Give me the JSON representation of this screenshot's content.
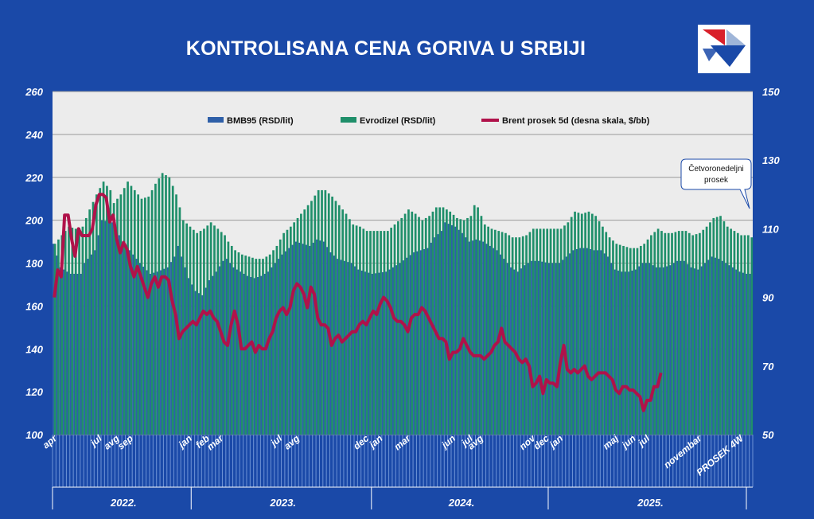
{
  "chart_data": {
    "type": "bar+line",
    "title": "KONTROLISANA CENA GORIVA U SRBIJI",
    "left_axis": {
      "min": 100,
      "max": 260,
      "ticks": [
        100,
        120,
        140,
        160,
        180,
        200,
        220,
        240,
        260
      ]
    },
    "right_axis": {
      "min": 50,
      "max": 150,
      "ticks": [
        50,
        70,
        90,
        110,
        130,
        150
      ]
    },
    "legend": [
      {
        "label": "BMB95 (RSD/lit)",
        "color": "#2e5fa8"
      },
      {
        "label": "Evrodizel (RSD/lit)",
        "color": "#1f8f6a"
      },
      {
        "label": "Brent prosek  5d (desna skala, $/bb)",
        "color": "#b0124a"
      }
    ],
    "annotation": "Četvoronedeljni prosek",
    "x_month_labels": [
      {
        "i": 0,
        "t": "apr"
      },
      {
        "i": 13,
        "t": "jul"
      },
      {
        "i": 18,
        "t": "avg"
      },
      {
        "i": 22,
        "t": "sep"
      },
      {
        "i": 39,
        "t": "jan"
      },
      {
        "i": 44,
        "t": "feb"
      },
      {
        "i": 48,
        "t": "mar"
      },
      {
        "i": 65,
        "t": "jul"
      },
      {
        "i": 70,
        "t": "avg"
      },
      {
        "i": 90,
        "t": "dec"
      },
      {
        "i": 94,
        "t": "jan"
      },
      {
        "i": 102,
        "t": "mar"
      },
      {
        "i": 115,
        "t": "jun"
      },
      {
        "i": 120,
        "t": "jul"
      },
      {
        "i": 123,
        "t": "avg"
      },
      {
        "i": 138,
        "t": "nov"
      },
      {
        "i": 142,
        "t": "dec"
      },
      {
        "i": 146,
        "t": "jan"
      },
      {
        "i": 162,
        "t": "maj"
      },
      {
        "i": 167,
        "t": "jun"
      },
      {
        "i": 171,
        "t": "jul"
      },
      {
        "i": 186,
        "t": "novembar"
      },
      {
        "i": 198,
        "t": "PROSEK 4W"
      }
    ],
    "years": [
      {
        "label": "2022.",
        "from": 0,
        "to": 40
      },
      {
        "label": "2023.",
        "from": 40,
        "to": 92
      },
      {
        "label": "2024.",
        "from": 92,
        "to": 143
      },
      {
        "label": "2025.",
        "from": 143,
        "to": 201
      }
    ],
    "n_periods": 202,
    "bmb95_knots": [
      [
        0,
        189
      ],
      [
        2,
        178
      ],
      [
        5,
        175
      ],
      [
        8,
        175
      ],
      [
        9,
        180
      ],
      [
        12,
        186
      ],
      [
        14,
        200
      ],
      [
        17,
        199
      ],
      [
        18,
        196
      ],
      [
        20,
        190
      ],
      [
        22,
        186
      ],
      [
        25,
        180
      ],
      [
        28,
        175
      ],
      [
        30,
        176
      ],
      [
        33,
        178
      ],
      [
        35,
        183
      ],
      [
        36,
        188
      ],
      [
        37,
        183
      ],
      [
        39,
        173
      ],
      [
        41,
        167
      ],
      [
        43,
        165
      ],
      [
        45,
        172
      ],
      [
        47,
        176
      ],
      [
        49,
        181
      ],
      [
        50,
        182
      ],
      [
        52,
        178
      ],
      [
        54,
        176
      ],
      [
        56,
        174
      ],
      [
        58,
        173
      ],
      [
        60,
        174
      ],
      [
        62,
        176
      ],
      [
        64,
        180
      ],
      [
        66,
        184
      ],
      [
        68,
        187
      ],
      [
        70,
        190
      ],
      [
        72,
        189
      ],
      [
        74,
        188
      ],
      [
        76,
        191
      ],
      [
        78,
        190
      ],
      [
        80,
        185
      ],
      [
        82,
        182
      ],
      [
        86,
        180
      ],
      [
        88,
        177
      ],
      [
        92,
        175
      ],
      [
        96,
        176
      ],
      [
        100,
        180
      ],
      [
        104,
        185
      ],
      [
        106,
        186
      ],
      [
        108,
        187
      ],
      [
        110,
        192
      ],
      [
        112,
        195
      ],
      [
        113,
        199
      ],
      [
        116,
        197
      ],
      [
        118,
        194
      ],
      [
        120,
        190
      ],
      [
        122,
        191
      ],
      [
        124,
        190
      ],
      [
        128,
        186
      ],
      [
        130,
        182
      ],
      [
        132,
        178
      ],
      [
        134,
        176
      ],
      [
        136,
        179
      ],
      [
        138,
        181
      ],
      [
        140,
        181
      ],
      [
        143,
        180
      ],
      [
        146,
        180
      ],
      [
        148,
        183
      ],
      [
        150,
        186
      ],
      [
        152,
        187
      ],
      [
        154,
        187
      ],
      [
        156,
        186
      ],
      [
        158,
        186
      ],
      [
        160,
        183
      ],
      [
        162,
        177
      ],
      [
        164,
        176
      ],
      [
        166,
        176
      ],
      [
        168,
        177
      ],
      [
        170,
        180
      ],
      [
        172,
        180
      ],
      [
        174,
        178
      ],
      [
        176,
        178
      ],
      [
        178,
        179
      ],
      [
        180,
        181
      ],
      [
        182,
        181
      ],
      [
        184,
        178
      ],
      [
        186,
        177
      ],
      [
        188,
        180
      ],
      [
        190,
        183
      ],
      [
        192,
        182
      ],
      [
        194,
        180
      ],
      [
        196,
        178
      ],
      [
        198,
        176
      ],
      [
        200,
        175
      ],
      [
        201,
        175
      ]
    ],
    "evrodizel_knots": [
      [
        0,
        189
      ],
      [
        2,
        193
      ],
      [
        4,
        197
      ],
      [
        6,
        196
      ],
      [
        8,
        197
      ],
      [
        10,
        205
      ],
      [
        12,
        212
      ],
      [
        14,
        218
      ],
      [
        16,
        214
      ],
      [
        17,
        208
      ],
      [
        19,
        212
      ],
      [
        21,
        218
      ],
      [
        23,
        214
      ],
      [
        25,
        210
      ],
      [
        27,
        211
      ],
      [
        29,
        217
      ],
      [
        31,
        222
      ],
      [
        33,
        220
      ],
      [
        35,
        212
      ],
      [
        37,
        200
      ],
      [
        39,
        197
      ],
      [
        41,
        194
      ],
      [
        43,
        196
      ],
      [
        45,
        199
      ],
      [
        47,
        196
      ],
      [
        49,
        193
      ],
      [
        50,
        190
      ],
      [
        52,
        186
      ],
      [
        54,
        184
      ],
      [
        56,
        183
      ],
      [
        58,
        182
      ],
      [
        60,
        182
      ],
      [
        62,
        184
      ],
      [
        64,
        188
      ],
      [
        66,
        194
      ],
      [
        68,
        197
      ],
      [
        70,
        201
      ],
      [
        72,
        205
      ],
      [
        74,
        209
      ],
      [
        76,
        214
      ],
      [
        78,
        214
      ],
      [
        80,
        211
      ],
      [
        82,
        207
      ],
      [
        84,
        203
      ],
      [
        86,
        198
      ],
      [
        88,
        197
      ],
      [
        90,
        195
      ],
      [
        92,
        195
      ],
      [
        96,
        195
      ],
      [
        100,
        201
      ],
      [
        102,
        205
      ],
      [
        104,
        203
      ],
      [
        106,
        200
      ],
      [
        108,
        202
      ],
      [
        110,
        206
      ],
      [
        112,
        206
      ],
      [
        114,
        204
      ],
      [
        116,
        201
      ],
      [
        118,
        200
      ],
      [
        120,
        202
      ],
      [
        121,
        207
      ],
      [
        122,
        206
      ],
      [
        124,
        198
      ],
      [
        126,
        196
      ],
      [
        128,
        195
      ],
      [
        130,
        194
      ],
      [
        132,
        192
      ],
      [
        134,
        192
      ],
      [
        136,
        193
      ],
      [
        138,
        196
      ],
      [
        140,
        196
      ],
      [
        143,
        196
      ],
      [
        146,
        196
      ],
      [
        148,
        199
      ],
      [
        150,
        204
      ],
      [
        152,
        203
      ],
      [
        154,
        204
      ],
      [
        156,
        202
      ],
      [
        158,
        197
      ],
      [
        160,
        192
      ],
      [
        162,
        189
      ],
      [
        164,
        188
      ],
      [
        166,
        187
      ],
      [
        168,
        187
      ],
      [
        170,
        189
      ],
      [
        172,
        193
      ],
      [
        174,
        196
      ],
      [
        176,
        194
      ],
      [
        178,
        194
      ],
      [
        180,
        195
      ],
      [
        182,
        195
      ],
      [
        184,
        193
      ],
      [
        186,
        194
      ],
      [
        188,
        197
      ],
      [
        190,
        201
      ],
      [
        192,
        202
      ],
      [
        194,
        197
      ],
      [
        196,
        195
      ],
      [
        198,
        193
      ],
      [
        200,
        193
      ],
      [
        201,
        192
      ]
    ],
    "brent_knots": [
      [
        0,
        90
      ],
      [
        1,
        98
      ],
      [
        2,
        96
      ],
      [
        3,
        114
      ],
      [
        4,
        114
      ],
      [
        5,
        107
      ],
      [
        6,
        102
      ],
      [
        7,
        110
      ],
      [
        8,
        108
      ],
      [
        9,
        108
      ],
      [
        10,
        108
      ],
      [
        11,
        110
      ],
      [
        12,
        117
      ],
      [
        13,
        120
      ],
      [
        14,
        120
      ],
      [
        15,
        119
      ],
      [
        16,
        112
      ],
      [
        17,
        114
      ],
      [
        18,
        107
      ],
      [
        19,
        103
      ],
      [
        20,
        106
      ],
      [
        21,
        104
      ],
      [
        22,
        99
      ],
      [
        23,
        96
      ],
      [
        24,
        99
      ],
      [
        25,
        96
      ],
      [
        26,
        93
      ],
      [
        27,
        90
      ],
      [
        28,
        94
      ],
      [
        29,
        96
      ],
      [
        30,
        93
      ],
      [
        31,
        96
      ],
      [
        32,
        96
      ],
      [
        33,
        95
      ],
      [
        34,
        89
      ],
      [
        35,
        85
      ],
      [
        36,
        78
      ],
      [
        37,
        80
      ],
      [
        38,
        81
      ],
      [
        39,
        82
      ],
      [
        40,
        83
      ],
      [
        41,
        82
      ],
      [
        42,
        84
      ],
      [
        43,
        86
      ],
      [
        44,
        85
      ],
      [
        45,
        86
      ],
      [
        46,
        84
      ],
      [
        47,
        83
      ],
      [
        48,
        80
      ],
      [
        49,
        77
      ],
      [
        50,
        76
      ],
      [
        51,
        82
      ],
      [
        52,
        86
      ],
      [
        53,
        82
      ],
      [
        54,
        75
      ],
      [
        55,
        75
      ],
      [
        56,
        76
      ],
      [
        57,
        77
      ],
      [
        58,
        74
      ],
      [
        59,
        76
      ],
      [
        60,
        75
      ],
      [
        61,
        75
      ],
      [
        62,
        78
      ],
      [
        63,
        80
      ],
      [
        64,
        84
      ],
      [
        65,
        86
      ],
      [
        66,
        87
      ],
      [
        67,
        85
      ],
      [
        68,
        87
      ],
      [
        69,
        92
      ],
      [
        70,
        94
      ],
      [
        71,
        93
      ],
      [
        72,
        91
      ],
      [
        73,
        87
      ],
      [
        74,
        93
      ],
      [
        75,
        91
      ],
      [
        76,
        84
      ],
      [
        77,
        82
      ],
      [
        78,
        82
      ],
      [
        79,
        81
      ],
      [
        80,
        76
      ],
      [
        81,
        78
      ],
      [
        82,
        79
      ],
      [
        83,
        77
      ],
      [
        84,
        78
      ],
      [
        85,
        79
      ],
      [
        86,
        80
      ],
      [
        87,
        80
      ],
      [
        88,
        82
      ],
      [
        89,
        83
      ],
      [
        90,
        82
      ],
      [
        91,
        84
      ],
      [
        92,
        86
      ],
      [
        93,
        85
      ],
      [
        94,
        88
      ],
      [
        95,
        90
      ],
      [
        96,
        89
      ],
      [
        97,
        87
      ],
      [
        98,
        84
      ],
      [
        99,
        83
      ],
      [
        100,
        83
      ],
      [
        101,
        82
      ],
      [
        102,
        80
      ],
      [
        103,
        84
      ],
      [
        104,
        85
      ],
      [
        105,
        85
      ],
      [
        106,
        87
      ],
      [
        107,
        86
      ],
      [
        108,
        84
      ],
      [
        109,
        82
      ],
      [
        110,
        80
      ],
      [
        111,
        78
      ],
      [
        112,
        78
      ],
      [
        113,
        77
      ],
      [
        114,
        72
      ],
      [
        115,
        74
      ],
      [
        116,
        74
      ],
      [
        117,
        75
      ],
      [
        118,
        78
      ],
      [
        119,
        76
      ],
      [
        120,
        74
      ],
      [
        121,
        73
      ],
      [
        122,
        73
      ],
      [
        123,
        73
      ],
      [
        124,
        72
      ],
      [
        125,
        73
      ],
      [
        126,
        74
      ],
      [
        127,
        76
      ],
      [
        128,
        77
      ],
      [
        129,
        81
      ],
      [
        130,
        77
      ],
      [
        131,
        76
      ],
      [
        132,
        75
      ],
      [
        133,
        74
      ],
      [
        134,
        72
      ],
      [
        135,
        71
      ],
      [
        136,
        72
      ],
      [
        137,
        70
      ],
      [
        138,
        64
      ],
      [
        139,
        65
      ],
      [
        140,
        67
      ],
      [
        141,
        62
      ],
      [
        142,
        66
      ],
      [
        143,
        65
      ],
      [
        144,
        65
      ],
      [
        145,
        64
      ],
      [
        146,
        71
      ],
      [
        147,
        76
      ],
      [
        148,
        69
      ],
      [
        149,
        68
      ],
      [
        150,
        69
      ],
      [
        151,
        68
      ],
      [
        152,
        69
      ],
      [
        153,
        70
      ],
      [
        154,
        67
      ],
      [
        155,
        66
      ],
      [
        156,
        67
      ],
      [
        157,
        68
      ],
      [
        158,
        68
      ],
      [
        159,
        68
      ],
      [
        160,
        67
      ],
      [
        161,
        66
      ],
      [
        162,
        63
      ],
      [
        163,
        62
      ],
      [
        164,
        64
      ],
      [
        165,
        64
      ],
      [
        166,
        63
      ],
      [
        167,
        63
      ],
      [
        168,
        62
      ],
      [
        169,
        61
      ],
      [
        170,
        57
      ],
      [
        171,
        60
      ],
      [
        172,
        60
      ],
      [
        173,
        64
      ],
      [
        174,
        64
      ],
      [
        175,
        68
      ]
    ]
  }
}
